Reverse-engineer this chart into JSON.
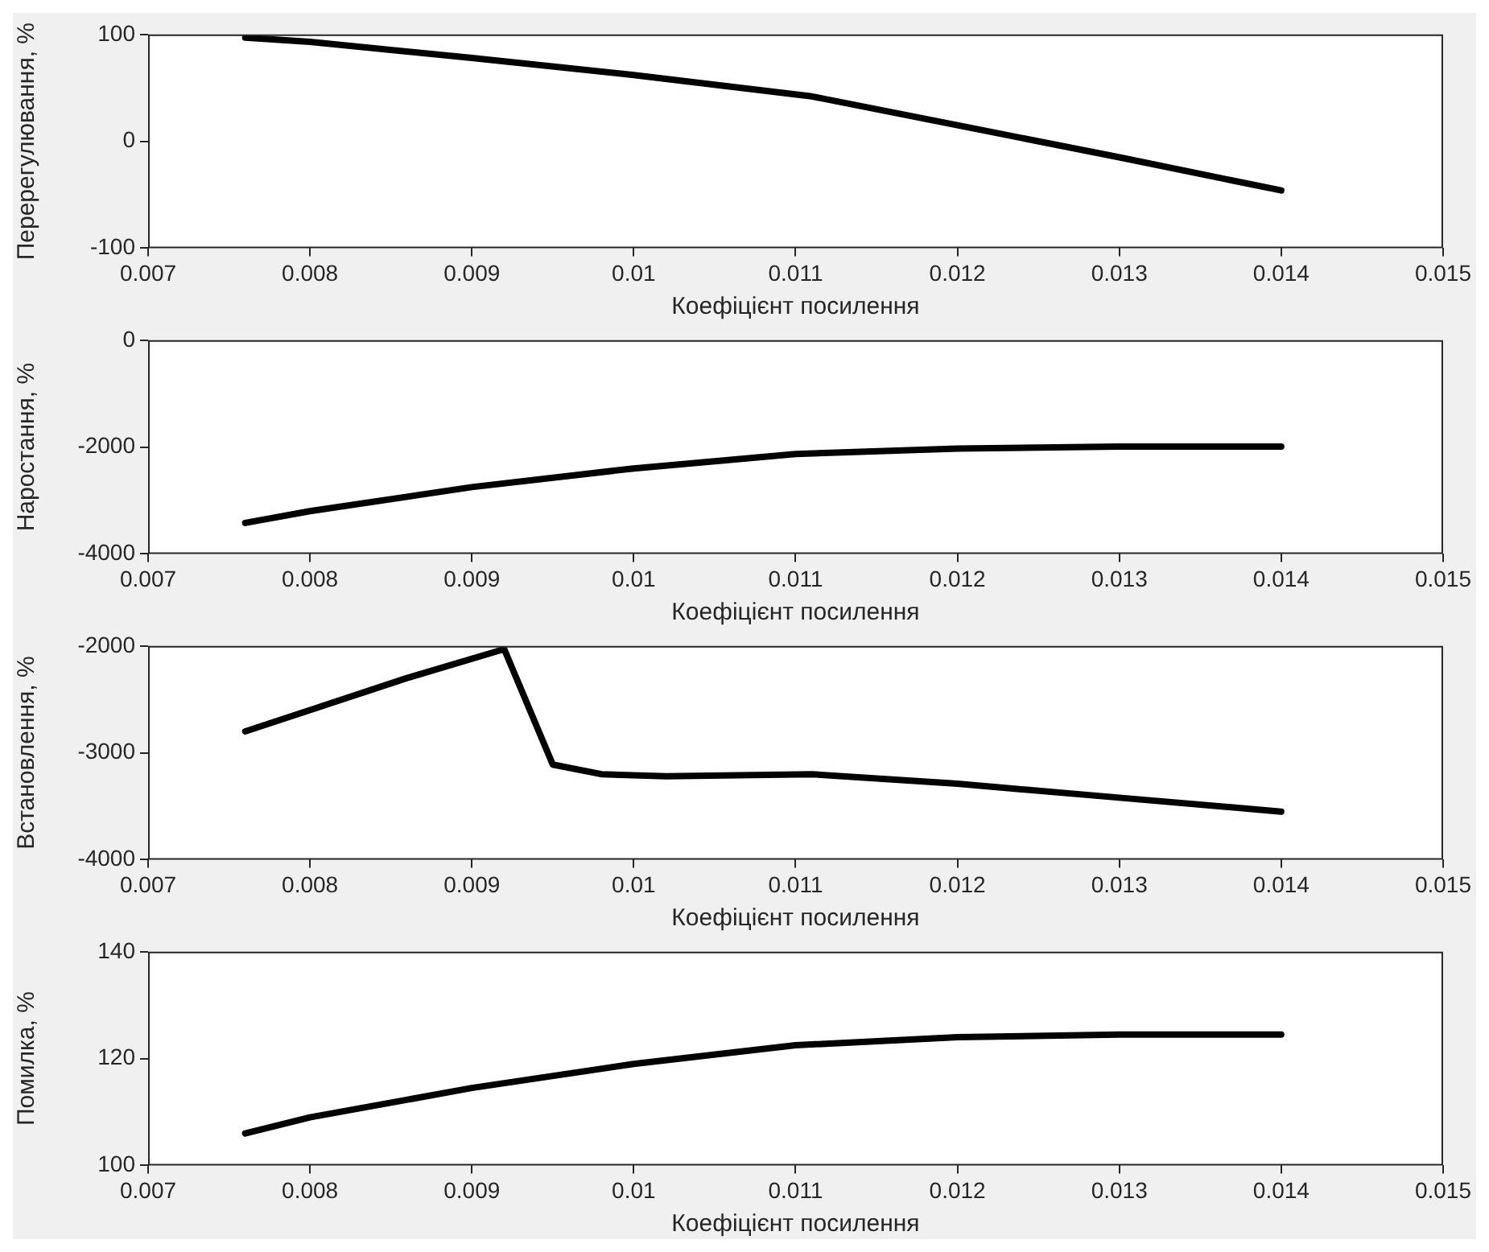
{
  "chart_data": [
    {
      "type": "line",
      "xlabel": "Коефіцієнт посилення",
      "ylabel": "Перерегулювання, %",
      "x": [
        0.0076,
        0.008,
        0.009,
        0.01,
        0.0111,
        0.012,
        0.013,
        0.014
      ],
      "series": [
        {
          "color": "#000000",
          "values": [
            97,
            93,
            78,
            62,
            42,
            15,
            -15,
            -46
          ]
        }
      ],
      "xlim": [
        0.007,
        0.015
      ],
      "xticks": [
        0.007,
        0.008,
        0.009,
        0.01,
        0.011,
        0.012,
        0.013,
        0.014,
        0.015
      ],
      "ylim": [
        -100,
        100
      ],
      "yticks": [
        -100,
        0,
        100
      ],
      "grid": false,
      "legend": false,
      "marker": "none",
      "line_style": "solid"
    },
    {
      "type": "line",
      "xlabel": "Коефіцієнт посилення",
      "ylabel": "Наростання, %",
      "x": [
        0.0076,
        0.008,
        0.009,
        0.01,
        0.011,
        0.012,
        0.013,
        0.014
      ],
      "series": [
        {
          "color": "#000000",
          "values": [
            -3420,
            -3200,
            -2750,
            -2400,
            -2130,
            -2030,
            -1990,
            -1990
          ]
        }
      ],
      "xlim": [
        0.007,
        0.015
      ],
      "xticks": [
        0.007,
        0.008,
        0.009,
        0.01,
        0.011,
        0.012,
        0.013,
        0.014,
        0.015
      ],
      "ylim": [
        -4000,
        0
      ],
      "yticks": [
        -4000,
        -2000,
        0
      ],
      "grid": false,
      "legend": false,
      "marker": "none",
      "line_style": "solid"
    },
    {
      "type": "line",
      "xlabel": "Коефіцієнт посилення",
      "ylabel": "Встановлення, %",
      "x": [
        0.0076,
        0.008,
        0.0086,
        0.0092,
        0.0095,
        0.0098,
        0.0102,
        0.0111,
        0.012,
        0.013,
        0.014
      ],
      "series": [
        {
          "color": "#000000",
          "values": [
            -2800,
            -2600,
            -2300,
            -2030,
            -3110,
            -3200,
            -3220,
            -3200,
            -3290,
            -3420,
            -3550
          ]
        }
      ],
      "xlim": [
        0.007,
        0.015
      ],
      "xticks": [
        0.007,
        0.008,
        0.009,
        0.01,
        0.011,
        0.012,
        0.013,
        0.014,
        0.015
      ],
      "ylim": [
        -4000,
        -2000
      ],
      "yticks": [
        -4000,
        -3000,
        -2000
      ],
      "grid": false,
      "legend": false,
      "marker": "none",
      "line_style": "solid"
    },
    {
      "type": "line",
      "xlabel": "Коефіцієнт посилення",
      "ylabel": "Помилка, %",
      "x": [
        0.0076,
        0.008,
        0.009,
        0.01,
        0.011,
        0.012,
        0.013,
        0.014
      ],
      "series": [
        {
          "color": "#000000",
          "values": [
            106,
            109,
            114.5,
            119,
            122.5,
            124,
            124.5,
            124.5
          ]
        }
      ],
      "xlim": [
        0.007,
        0.015
      ],
      "xticks": [
        0.007,
        0.008,
        0.009,
        0.01,
        0.011,
        0.012,
        0.013,
        0.014,
        0.015
      ],
      "ylim": [
        100,
        140
      ],
      "yticks": [
        100,
        120,
        140
      ],
      "grid": false,
      "legend": false,
      "marker": "none",
      "line_style": "solid"
    }
  ]
}
